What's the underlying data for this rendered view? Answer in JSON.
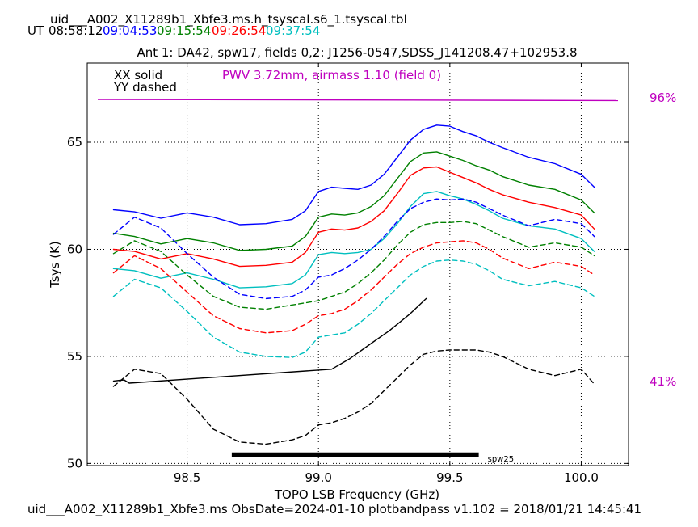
{
  "chart_data": {
    "type": "line",
    "title": "uid___A002_X11289b1_Xbfe3.ms.h_tsyscal.s6_1.tsyscal.tbl",
    "subtitle": "Ant 1: DA42,  spw17,  fields 0,2: J1256-0547,SDSS_J141208.47+102953.8",
    "time_prefix": "UT",
    "times": [
      {
        "label": "08:58:12",
        "color": "#000000"
      },
      {
        "label": "09:04:53",
        "color": "#0000ff"
      },
      {
        "label": "09:15:54",
        "color": "#008000"
      },
      {
        "label": "09:26:54",
        "color": "#ff0000"
      },
      {
        "label": "09:37:54",
        "color": "#00bfbf"
      }
    ],
    "xlabel": "TOPO LSB Frequency (GHz)",
    "ylabel": "Tsys (K)",
    "xlim": [
      98.12,
      100.18
    ],
    "ylim": [
      49.9,
      68.7
    ],
    "xticks": [
      98.5,
      99.0,
      99.5,
      100.0
    ],
    "xtick_labels": [
      "98.5",
      "99.0",
      "99.5",
      "100.0"
    ],
    "yticks": [
      50,
      55,
      60,
      65
    ],
    "ytick_labels": [
      "50",
      "55",
      "60",
      "65"
    ],
    "grid": true,
    "legend": {
      "solid": "XX solid",
      "dashed": "YY dashed",
      "placement": "top-left"
    },
    "pwv_annotation": "PWV 3.72mm, airmass 1.10 (field 0)",
    "pwv_color": "#bf00bf",
    "transmission": {
      "label_top": "96%",
      "label_bottom": "41%",
      "x": [
        98.16,
        100.14
      ],
      "y": [
        67.0,
        66.95
      ]
    },
    "spw_bar": {
      "label": "spw25",
      "x_start": 98.67,
      "x_end": 99.61,
      "y": 50.4
    },
    "footer": "uid___A002_X11289b1_Xbfe3.ms  ObsDate=2024-01-10   plotbandpass v1.102 = 2018/01/21 14:45:41",
    "x": [
      98.22,
      98.3,
      98.4,
      98.5,
      98.6,
      98.7,
      98.8,
      98.9,
      98.95,
      99.0,
      99.05,
      99.1,
      99.15,
      99.2,
      99.25,
      99.3,
      99.35,
      99.4,
      99.45,
      99.5,
      99.55,
      99.6,
      99.65,
      99.7,
      99.8,
      99.9,
      100.0,
      100.05
    ],
    "series": [
      {
        "color": "#0000ff",
        "style": "solid",
        "values": [
          61.85,
          61.75,
          61.45,
          61.7,
          61.5,
          61.15,
          61.2,
          61.4,
          61.8,
          62.7,
          62.9,
          62.85,
          62.8,
          63.0,
          63.5,
          64.3,
          65.1,
          65.6,
          65.8,
          65.75,
          65.5,
          65.3,
          65.0,
          64.75,
          64.3,
          64.0,
          63.5,
          62.9
        ]
      },
      {
        "color": "#008000",
        "style": "solid",
        "values": [
          60.75,
          60.6,
          60.25,
          60.5,
          60.3,
          59.95,
          60.0,
          60.15,
          60.6,
          61.5,
          61.65,
          61.6,
          61.7,
          62.0,
          62.5,
          63.3,
          64.1,
          64.5,
          64.55,
          64.35,
          64.15,
          63.9,
          63.7,
          63.4,
          63.0,
          62.8,
          62.3,
          61.7
        ]
      },
      {
        "color": "#ff0000",
        "style": "solid",
        "values": [
          60.0,
          59.9,
          59.55,
          59.8,
          59.55,
          59.2,
          59.25,
          59.4,
          59.85,
          60.8,
          60.95,
          60.9,
          61.0,
          61.3,
          61.8,
          62.6,
          63.45,
          63.8,
          63.85,
          63.6,
          63.35,
          63.1,
          62.8,
          62.55,
          62.2,
          61.95,
          61.6,
          60.95
        ]
      },
      {
        "color": "#00bfbf",
        "style": "solid",
        "values": [
          59.1,
          59.0,
          58.65,
          58.9,
          58.6,
          58.2,
          58.25,
          58.4,
          58.8,
          59.75,
          59.85,
          59.8,
          59.85,
          60.0,
          60.5,
          61.2,
          62.0,
          62.6,
          62.7,
          62.5,
          62.35,
          62.1,
          61.8,
          61.45,
          61.1,
          60.95,
          60.5,
          59.9
        ]
      },
      {
        "color": "#0000ff",
        "style": "dashed",
        "values": [
          60.7,
          61.5,
          61.0,
          59.8,
          58.7,
          57.9,
          57.7,
          57.8,
          58.1,
          58.7,
          58.8,
          59.1,
          59.5,
          60.0,
          60.6,
          61.3,
          61.9,
          62.2,
          62.35,
          62.3,
          62.35,
          62.2,
          61.9,
          61.6,
          61.1,
          61.4,
          61.2,
          60.6
        ]
      },
      {
        "color": "#008000",
        "style": "dashed",
        "values": [
          59.8,
          60.4,
          59.9,
          58.8,
          57.8,
          57.3,
          57.2,
          57.4,
          57.5,
          57.6,
          57.8,
          58.0,
          58.4,
          58.9,
          59.5,
          60.2,
          60.8,
          61.15,
          61.25,
          61.25,
          61.3,
          61.2,
          60.9,
          60.6,
          60.1,
          60.3,
          60.1,
          59.7
        ]
      },
      {
        "color": "#ff0000",
        "style": "dashed",
        "values": [
          58.9,
          59.7,
          59.1,
          58.0,
          56.9,
          56.3,
          56.1,
          56.2,
          56.5,
          56.9,
          57.0,
          57.2,
          57.6,
          58.1,
          58.7,
          59.3,
          59.8,
          60.1,
          60.3,
          60.35,
          60.4,
          60.3,
          60.0,
          59.6,
          59.1,
          59.4,
          59.2,
          58.8
        ]
      },
      {
        "color": "#00bfbf",
        "style": "dashed",
        "values": [
          57.8,
          58.6,
          58.2,
          57.1,
          55.9,
          55.2,
          55.0,
          54.95,
          55.2,
          55.9,
          56.0,
          56.1,
          56.5,
          57.0,
          57.6,
          58.2,
          58.8,
          59.2,
          59.45,
          59.5,
          59.45,
          59.3,
          59.0,
          58.6,
          58.3,
          58.5,
          58.2,
          57.8
        ]
      },
      {
        "color": "#000000",
        "style": "dashed",
        "values": [
          53.6,
          54.4,
          54.2,
          53.0,
          51.6,
          51.0,
          50.9,
          51.1,
          51.3,
          51.8,
          51.9,
          52.1,
          52.4,
          52.8,
          53.4,
          54.0,
          54.6,
          55.1,
          55.25,
          55.3,
          55.3,
          55.3,
          55.2,
          55.0,
          54.4,
          54.1,
          54.4,
          53.7
        ]
      },
      {
        "color": "#000000",
        "style": "solid",
        "x": [
          98.22,
          98.26,
          98.28,
          99.05,
          99.12,
          99.2,
          99.27,
          99.35,
          99.41
        ],
        "values": [
          53.85,
          53.9,
          53.75,
          54.4,
          54.9,
          55.6,
          56.2,
          57.0,
          57.7
        ]
      }
    ]
  }
}
